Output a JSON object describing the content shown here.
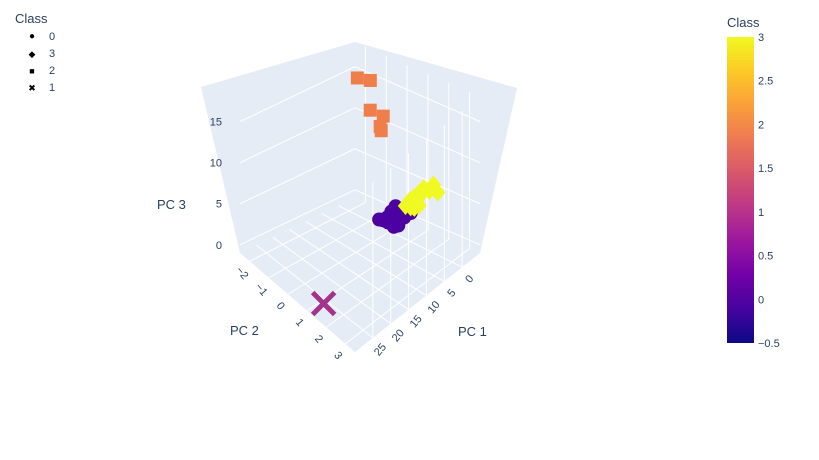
{
  "legend": {
    "title": "Class",
    "items": [
      {
        "label": "0",
        "symbol": "circle"
      },
      {
        "label": "3",
        "symbol": "diamond"
      },
      {
        "label": "2",
        "symbol": "square"
      },
      {
        "label": "1",
        "symbol": "x"
      }
    ]
  },
  "colorbar": {
    "title": "Class",
    "colorscale": [
      "#0d0887",
      "#46039f",
      "#7201a8",
      "#9c179e",
      "#bd3786",
      "#d8576b",
      "#ed7953",
      "#fb9f3a",
      "#fdca26",
      "#f0f921"
    ],
    "range": [
      -0.5,
      3
    ],
    "ticks": [
      "3",
      "2.5",
      "2",
      "1.5",
      "1",
      "0.5",
      "0",
      "−0.5"
    ]
  },
  "chart_data": {
    "type": "scatter3d",
    "title": "",
    "axes": {
      "x": {
        "label": "PC 1",
        "ticks": [
          "0",
          "5",
          "10",
          "15",
          "20",
          "25"
        ],
        "range": [
          -5,
          30
        ]
      },
      "y": {
        "label": "PC 2",
        "ticks": [
          "−2",
          "−1",
          "0",
          "1",
          "2",
          "3"
        ],
        "range": [
          -2.5,
          3.5
        ]
      },
      "z": {
        "label": "PC 3",
        "ticks": [
          "0",
          "5",
          "10",
          "15"
        ],
        "range": [
          -1,
          18
        ]
      }
    },
    "background": "#e5ecf6",
    "grid": true,
    "series": [
      {
        "name": "0",
        "symbol": "circle",
        "color": "#4c02a1",
        "color_value": 0,
        "points": [
          [
            -1.5,
            0.6,
            1.8
          ],
          [
            -1.2,
            0.8,
            1.9
          ],
          [
            -1.0,
            0.7,
            2.0
          ],
          [
            -0.9,
            0.5,
            1.6
          ],
          [
            -0.6,
            0.4,
            1.9
          ],
          [
            -0.5,
            0.6,
            1.3
          ],
          [
            -0.3,
            0.3,
            1.5
          ],
          [
            -0.2,
            0.5,
            1.8
          ],
          [
            0.0,
            0.2,
            1.2
          ],
          [
            0.2,
            0.1,
            1.6
          ],
          [
            0.3,
            0.4,
            0.9
          ],
          [
            0.5,
            0.2,
            1.0
          ],
          [
            0.8,
            0.3,
            1.1
          ],
          [
            1.0,
            0.0,
            0.9
          ],
          [
            1.2,
            0.1,
            1.2
          ],
          [
            1.5,
            -0.1,
            0.6
          ],
          [
            1.8,
            0.2,
            0.8
          ],
          [
            2.0,
            -0.2,
            0.7
          ],
          [
            2.3,
            0.0,
            1.0
          ],
          [
            0.6,
            0.5,
            0.5
          ],
          [
            1.3,
            0.4,
            0.4
          ],
          [
            -0.4,
            0.2,
            2.2
          ]
        ]
      },
      {
        "name": "3",
        "symbol": "diamond",
        "color": "#f0f921",
        "color_value": 3,
        "points": [
          [
            -2.5,
            1.2,
            5.0
          ],
          [
            -2.2,
            1.0,
            4.2
          ],
          [
            -2.0,
            1.3,
            5.3
          ],
          [
            -1.8,
            1.1,
            4.0
          ],
          [
            -1.6,
            0.9,
            3.8
          ],
          [
            -1.4,
            1.0,
            3.5
          ],
          [
            -1.2,
            1.2,
            3.3
          ],
          [
            -1.0,
            0.8,
            3.5
          ],
          [
            -0.8,
            1.0,
            3.0
          ],
          [
            -0.6,
            0.9,
            2.9
          ],
          [
            -0.3,
            0.7,
            2.9
          ],
          [
            -0.5,
            1.1,
            3.1
          ],
          [
            -3.0,
            1.4,
            4.8
          ],
          [
            -3.6,
            1.5,
            5.5
          ],
          [
            -4.2,
            1.6,
            4.5
          ]
        ]
      },
      {
        "name": "2",
        "symbol": "square",
        "color": "#ef7e4b",
        "color_value": 2,
        "points": [
          [
            4.0,
            -0.3,
            18.0
          ],
          [
            3.0,
            -1.1,
            17.0
          ],
          [
            5.0,
            0.5,
            15.0
          ],
          [
            1.0,
            -0.8,
            13.0
          ],
          [
            3.8,
            0.2,
            12.5
          ],
          [
            3.5,
            0.1,
            12.8
          ]
        ]
      },
      {
        "name": "1",
        "symbol": "x",
        "color": "#a3338b",
        "color_value": 1,
        "points": [
          [
            28.0,
            1.5,
            0.3
          ]
        ]
      }
    ]
  }
}
